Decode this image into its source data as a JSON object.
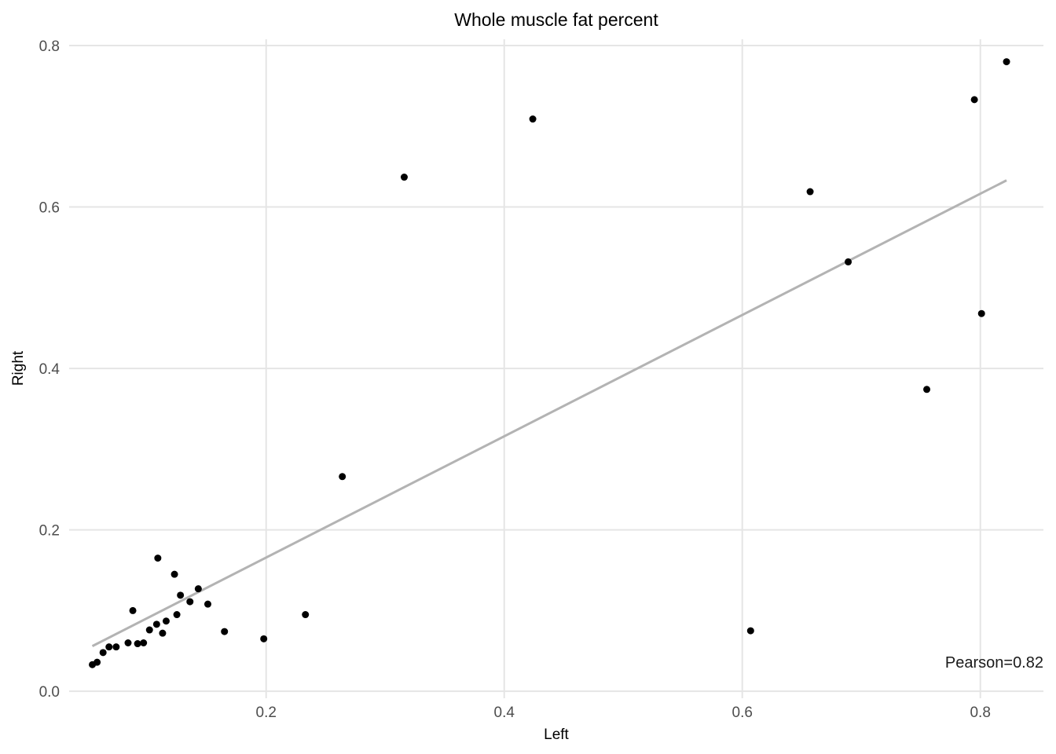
{
  "chart_data": {
    "type": "scatter",
    "title": "Whole muscle fat percent",
    "xlabel": "Left",
    "ylabel": "Right",
    "xlim": [
      0.0345,
      0.853
    ],
    "ylim": [
      -0.0086,
      0.8078
    ],
    "x_ticks": [
      0.2,
      0.4,
      0.6,
      0.8
    ],
    "y_ticks": [
      0.0,
      0.2,
      0.4,
      0.6,
      0.8
    ],
    "x_tick_labels": [
      "0.2",
      "0.4",
      "0.6",
      "0.8"
    ],
    "y_tick_labels": [
      "0.0",
      "0.2",
      "0.4",
      "0.6",
      "0.8"
    ],
    "grid": true,
    "points": [
      {
        "x": 0.054,
        "y": 0.033
      },
      {
        "x": 0.058,
        "y": 0.036
      },
      {
        "x": 0.063,
        "y": 0.048
      },
      {
        "x": 0.068,
        "y": 0.055
      },
      {
        "x": 0.074,
        "y": 0.055
      },
      {
        "x": 0.084,
        "y": 0.06
      },
      {
        "x": 0.088,
        "y": 0.1
      },
      {
        "x": 0.092,
        "y": 0.059
      },
      {
        "x": 0.097,
        "y": 0.06
      },
      {
        "x": 0.102,
        "y": 0.076
      },
      {
        "x": 0.108,
        "y": 0.083
      },
      {
        "x": 0.109,
        "y": 0.165
      },
      {
        "x": 0.113,
        "y": 0.072
      },
      {
        "x": 0.116,
        "y": 0.087
      },
      {
        "x": 0.123,
        "y": 0.145
      },
      {
        "x": 0.125,
        "y": 0.095
      },
      {
        "x": 0.128,
        "y": 0.119
      },
      {
        "x": 0.136,
        "y": 0.111
      },
      {
        "x": 0.143,
        "y": 0.127
      },
      {
        "x": 0.151,
        "y": 0.108
      },
      {
        "x": 0.165,
        "y": 0.074
      },
      {
        "x": 0.198,
        "y": 0.065
      },
      {
        "x": 0.233,
        "y": 0.095
      },
      {
        "x": 0.264,
        "y": 0.266
      },
      {
        "x": 0.316,
        "y": 0.637
      },
      {
        "x": 0.424,
        "y": 0.709
      },
      {
        "x": 0.607,
        "y": 0.075
      },
      {
        "x": 0.657,
        "y": 0.619
      },
      {
        "x": 0.689,
        "y": 0.532
      },
      {
        "x": 0.755,
        "y": 0.374
      },
      {
        "x": 0.795,
        "y": 0.733
      },
      {
        "x": 0.801,
        "y": 0.468
      },
      {
        "x": 0.822,
        "y": 0.78
      }
    ],
    "fit_line": {
      "x": [
        0.054,
        0.822
      ],
      "y": [
        0.056,
        0.633
      ],
      "color": "#b3b3b3"
    },
    "point_color": "#000000",
    "annotation": "Pearson=0.82"
  }
}
